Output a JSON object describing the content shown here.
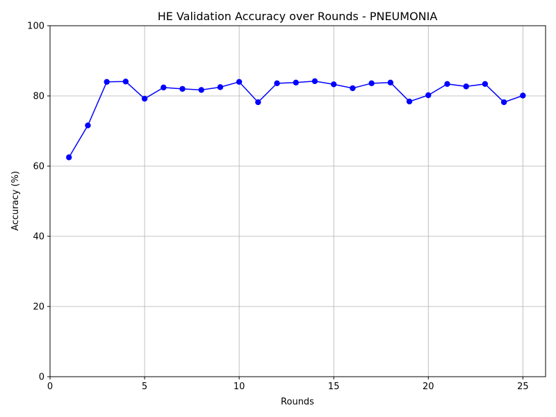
{
  "chart_data": {
    "type": "line",
    "title": "HE Validation Accuracy over Rounds - PNEUMONIA",
    "xlabel": "Rounds",
    "ylabel": "Accuracy (%)",
    "xlim": [
      0,
      26.2
    ],
    "ylim": [
      0,
      100
    ],
    "xticks": [
      0,
      5,
      10,
      15,
      20,
      25
    ],
    "yticks": [
      0,
      20,
      40,
      60,
      80,
      100
    ],
    "grid": true,
    "legend": "none",
    "series": [
      {
        "color": "#0000ff",
        "marker": "circle",
        "x": [
          1,
          2,
          3,
          4,
          5,
          6,
          7,
          8,
          9,
          10,
          11,
          12,
          13,
          14,
          15,
          16,
          17,
          18,
          19,
          20,
          21,
          22,
          23,
          24,
          25
        ],
        "y": [
          62.5,
          71.6,
          84.0,
          84.1,
          79.2,
          82.4,
          82.0,
          81.7,
          82.5,
          84.0,
          78.2,
          83.6,
          83.8,
          84.2,
          83.3,
          82.2,
          83.6,
          83.8,
          78.4,
          80.2,
          83.4,
          82.7,
          83.4,
          78.2,
          80.1
        ]
      }
    ]
  }
}
